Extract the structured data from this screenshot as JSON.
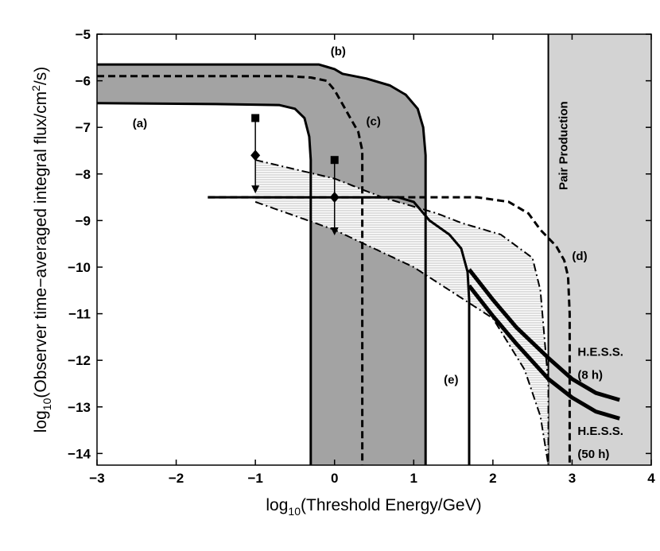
{
  "chart_data": {
    "type": "line",
    "xlabel": "log10(Threshold Energy/GeV)",
    "ylabel": "log10(Observer time-averaged integral flux/cm2/s)",
    "xlabel_parts": {
      "pre": "log",
      "sub": "10",
      "post": "(Threshold Energy/GeV)"
    },
    "ylabel_parts": {
      "pre": "log",
      "sub": "10",
      "mid": "(Observer time−averaged integral flux/cm",
      "sup": "2",
      "post": "/s)"
    },
    "xlim": [
      -3,
      4
    ],
    "ylim": [
      -14.25,
      -5
    ],
    "xticks": [
      -3,
      -2,
      -1,
      0,
      1,
      2,
      3,
      4
    ],
    "xtick_labels": [
      "−3",
      "−2",
      "−1",
      "0",
      "1",
      "2",
      "3",
      "4"
    ],
    "yticks": [
      -5,
      -6,
      -7,
      -8,
      -9,
      -10,
      -11,
      -12,
      -13,
      -14
    ],
    "ytick_labels": [
      "−5",
      "−6",
      "−7",
      "−8",
      "−9",
      "−10",
      "−11",
      "−12",
      "−13",
      "−14"
    ],
    "pair_production": {
      "label": "Pair Production",
      "x_start": 2.7
    },
    "regions": [
      {
        "name": "region (a)-(b) dark shaded",
        "upper": [
          [
            -3,
            -5.65
          ],
          [
            -0.2,
            -5.65
          ],
          [
            -0.1,
            -5.7
          ],
          [
            0.0,
            -5.75
          ],
          [
            0.1,
            -5.85
          ],
          [
            0.4,
            -5.95
          ],
          [
            0.7,
            -6.1
          ],
          [
            0.9,
            -6.3
          ],
          [
            1.05,
            -6.6
          ],
          [
            1.12,
            -7.0
          ],
          [
            1.15,
            -7.6
          ],
          [
            1.15,
            -14.25
          ]
        ],
        "lower": [
          [
            -3,
            -6.48
          ],
          [
            -1.5,
            -6.5
          ],
          [
            -0.7,
            -6.52
          ],
          [
            -0.5,
            -6.6
          ],
          [
            -0.38,
            -6.8
          ],
          [
            -0.32,
            -7.2
          ],
          [
            -0.3,
            -7.7
          ],
          [
            -0.3,
            -14.25
          ]
        ]
      },
      {
        "name": "hatched allowed region",
        "upper": [
          [
            -1,
            -7.7
          ],
          [
            0,
            -8.1
          ],
          [
            0.6,
            -8.5
          ],
          [
            1.3,
            -8.85
          ],
          [
            1.6,
            -9.05
          ],
          [
            2.1,
            -9.3
          ],
          [
            2.5,
            -9.8
          ],
          [
            2.6,
            -10.5
          ],
          [
            2.7,
            -12.5
          ],
          [
            2.7,
            -14.25
          ]
        ],
        "lower": [
          [
            -1,
            -8.6
          ],
          [
            0,
            -9.2
          ],
          [
            1,
            -10.0
          ],
          [
            2,
            -11.1
          ],
          [
            2.4,
            -12.2
          ],
          [
            2.6,
            -13.2
          ],
          [
            2.7,
            -14.25
          ]
        ]
      }
    ],
    "series": [
      {
        "name": "(a)",
        "values": [
          [
            -3,
            -6.48
          ],
          [
            -1.5,
            -6.5
          ],
          [
            -0.7,
            -6.52
          ],
          [
            -0.5,
            -6.6
          ],
          [
            -0.38,
            -6.8
          ],
          [
            -0.32,
            -7.2
          ],
          [
            -0.3,
            -7.7
          ],
          [
            -0.3,
            -14.25
          ]
        ]
      },
      {
        "name": "(b)",
        "values": [
          [
            -3,
            -5.65
          ],
          [
            -0.2,
            -5.65
          ],
          [
            -0.1,
            -5.7
          ],
          [
            0.0,
            -5.75
          ],
          [
            0.1,
            -5.85
          ],
          [
            0.4,
            -5.95
          ],
          [
            0.7,
            -6.1
          ],
          [
            0.9,
            -6.3
          ],
          [
            1.05,
            -6.6
          ],
          [
            1.12,
            -7.0
          ],
          [
            1.15,
            -7.6
          ],
          [
            1.15,
            -14.25
          ]
        ]
      },
      {
        "name": "(c)",
        "dashed": true,
        "values": [
          [
            -3,
            -5.9
          ],
          [
            -0.6,
            -5.9
          ],
          [
            -0.3,
            -5.93
          ],
          [
            -0.1,
            -6.0
          ],
          [
            0.0,
            -6.2
          ],
          [
            0.1,
            -6.5
          ],
          [
            0.2,
            -6.8
          ],
          [
            0.3,
            -7.1
          ],
          [
            0.35,
            -7.5
          ],
          [
            0.35,
            -14.25
          ]
        ]
      },
      {
        "name": "(d)",
        "dashed": true,
        "values": [
          [
            -1.6,
            -8.5
          ],
          [
            1.0,
            -8.5
          ],
          [
            1.8,
            -8.5
          ],
          [
            2.2,
            -8.6
          ],
          [
            2.45,
            -8.85
          ],
          [
            2.6,
            -9.2
          ],
          [
            2.8,
            -9.55
          ],
          [
            2.9,
            -9.85
          ],
          [
            2.95,
            -10.2
          ],
          [
            2.97,
            -11.0
          ],
          [
            2.97,
            -14.25
          ]
        ]
      },
      {
        "name": "(e)",
        "values": [
          [
            -1.6,
            -8.5
          ],
          [
            0.8,
            -8.5
          ],
          [
            1.0,
            -8.6
          ],
          [
            1.2,
            -9.0
          ],
          [
            1.45,
            -9.3
          ],
          [
            1.6,
            -9.6
          ],
          [
            1.68,
            -10.1
          ],
          [
            1.7,
            -10.7
          ],
          [
            1.7,
            -14.25
          ]
        ]
      },
      {
        "name": "H.E.S.S. (8 h)",
        "values": [
          [
            1.7,
            -10.05
          ],
          [
            2.0,
            -10.7
          ],
          [
            2.3,
            -11.3
          ],
          [
            2.7,
            -11.95
          ],
          [
            3.0,
            -12.4
          ],
          [
            3.3,
            -12.7
          ],
          [
            3.6,
            -12.85
          ]
        ]
      },
      {
        "name": "H.E.S.S. (50 h)",
        "values": [
          [
            1.7,
            -10.4
          ],
          [
            2.0,
            -11.05
          ],
          [
            2.3,
            -11.65
          ],
          [
            2.7,
            -12.4
          ],
          [
            3.0,
            -12.8
          ],
          [
            3.3,
            -13.1
          ],
          [
            3.6,
            -13.25
          ]
        ]
      }
    ],
    "error_bars": [
      {
        "x": -1,
        "upper_square": -6.8,
        "diamond": -7.6,
        "arrow_to": -8.4
      },
      {
        "x": 0,
        "upper_square": -7.7,
        "diamond": -8.5,
        "arrow_to": -9.3
      }
    ],
    "annotations": [
      {
        "text": "(a)",
        "x": -2.55,
        "y": -7.0
      },
      {
        "text": "(b)",
        "x": -0.05,
        "y": -5.45
      },
      {
        "text": "(c)",
        "x": 0.4,
        "y": -6.95
      },
      {
        "text": "(d)",
        "x": 3.0,
        "y": -9.85
      },
      {
        "text": "(e)",
        "x": 1.38,
        "y": -12.5
      },
      {
        "text": "H.E.S.S.",
        "x": 3.07,
        "y": -11.9
      },
      {
        "text": "(8 h)",
        "x": 3.07,
        "y": -12.4
      },
      {
        "text": "H.E.S.S.",
        "x": 3.07,
        "y": -13.6
      },
      {
        "text": "(50 h)",
        "x": 3.07,
        "y": -14.1
      }
    ]
  }
}
